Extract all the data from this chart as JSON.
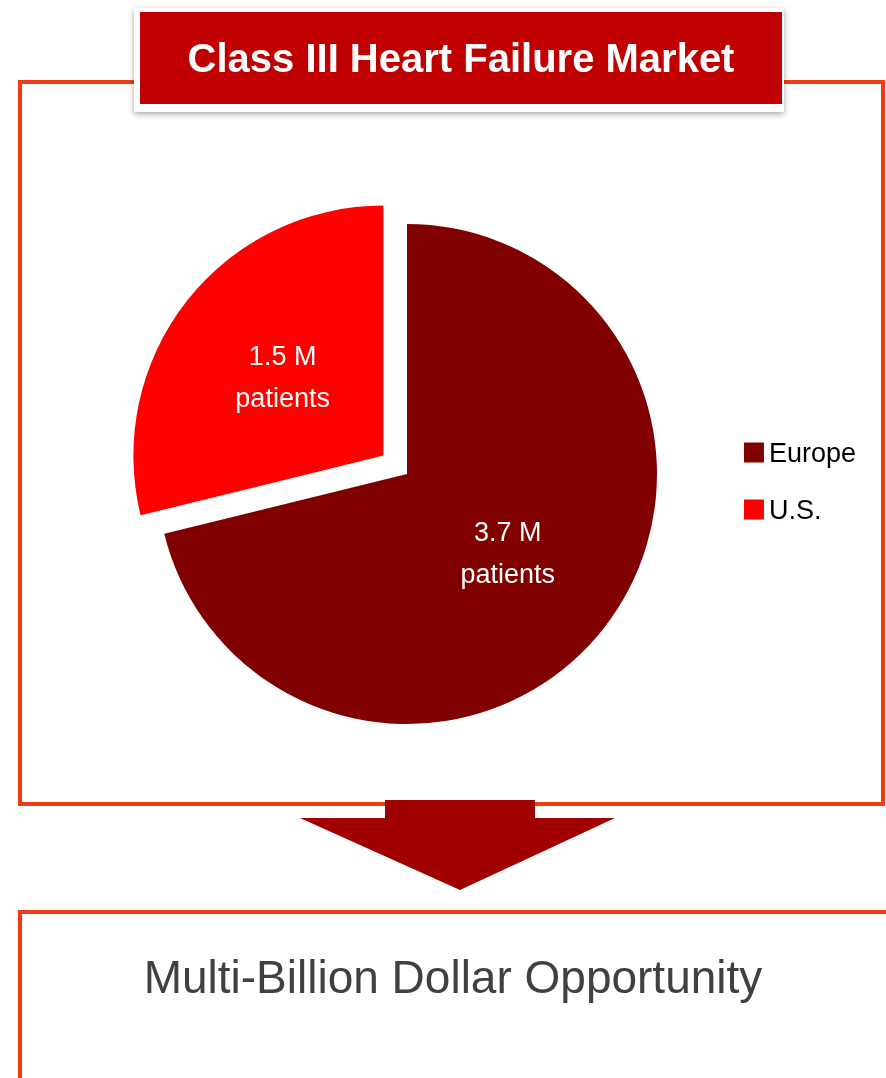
{
  "chart_data": {
    "type": "pie",
    "title": "Class III Heart Failure Market",
    "categories": [
      "Europe",
      "U.S."
    ],
    "values": [
      3.7,
      1.5
    ],
    "colors": [
      "#800000",
      "#ff0000"
    ],
    "value_labels": [
      "3.7 M\npatients",
      "1.5 M\npatients"
    ],
    "legend": "right",
    "annotations": [
      "Multi-Billion Dollar Opportunity"
    ]
  }
}
